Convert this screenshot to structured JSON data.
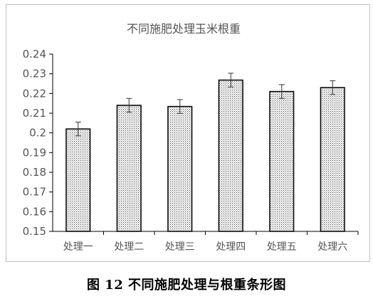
{
  "caption": "图 12  不同施肥处理与根重条形图",
  "chart_data": {
    "type": "bar",
    "title": "不同施肥处理玉米根重",
    "xlabel": "",
    "ylabel": "",
    "categories": [
      "处理一",
      "处理二",
      "处理三",
      "处理四",
      "处理五",
      "处理六"
    ],
    "values": [
      0.202,
      0.214,
      0.2134,
      0.2268,
      0.221,
      0.223
    ],
    "errors": [
      0.0035,
      0.0035,
      0.0035,
      0.0035,
      0.0035,
      0.0035
    ],
    "ylim": [
      0.15,
      0.24
    ],
    "yticks": [
      0.15,
      0.16,
      0.17,
      0.18,
      0.19,
      0.2,
      0.21,
      0.22,
      0.23,
      0.24
    ],
    "ytick_labels": [
      "0.15",
      "0.16",
      "0.17",
      "0.18",
      "0.19",
      "0.2",
      "0.21",
      "0.22",
      "0.23",
      "0.24"
    ],
    "bar_fill": "dotted",
    "bar_color": "#ffffff",
    "bar_edge_color": "#000000",
    "grid": false,
    "legend": false
  }
}
